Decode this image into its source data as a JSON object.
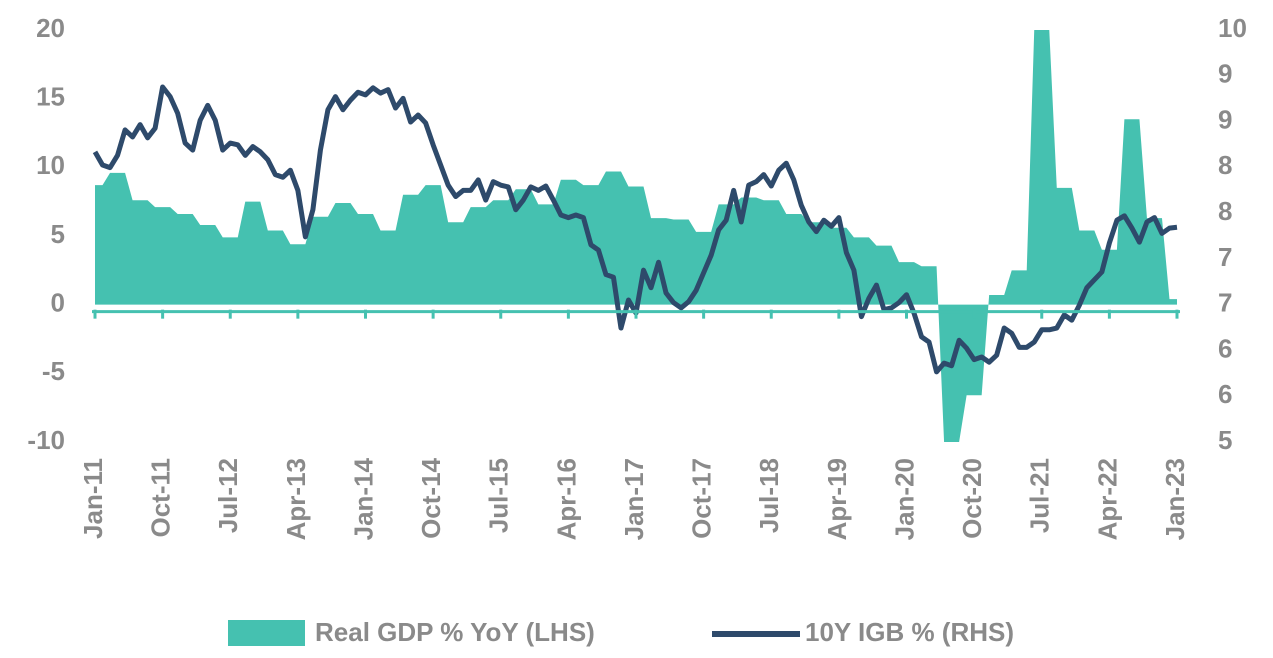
{
  "chart_data": {
    "type": "combo",
    "categories": [
      "Jan-11",
      null,
      null,
      null,
      null,
      null,
      null,
      null,
      null,
      "Oct-11",
      null,
      null,
      null,
      null,
      null,
      null,
      null,
      null,
      "Jul-12",
      null,
      null,
      null,
      null,
      null,
      null,
      null,
      null,
      "Apr-13",
      null,
      null,
      null,
      null,
      null,
      null,
      null,
      null,
      "Jan-14",
      null,
      null,
      null,
      null,
      null,
      null,
      null,
      null,
      "Oct-14",
      null,
      null,
      null,
      null,
      null,
      null,
      null,
      null,
      "Jul-15",
      null,
      null,
      null,
      null,
      null,
      null,
      null,
      null,
      "Apr-16",
      null,
      null,
      null,
      null,
      null,
      null,
      null,
      null,
      "Jan-17",
      null,
      null,
      null,
      null,
      null,
      null,
      null,
      null,
      "Oct-17",
      null,
      null,
      null,
      null,
      null,
      null,
      null,
      null,
      "Jul-18",
      null,
      null,
      null,
      null,
      null,
      null,
      null,
      null,
      "Apr-19",
      null,
      null,
      null,
      null,
      null,
      null,
      null,
      null,
      "Jan-20",
      null,
      null,
      null,
      null,
      null,
      null,
      null,
      null,
      "Oct-20",
      null,
      null,
      null,
      null,
      null,
      null,
      null,
      null,
      "Jul-21",
      null,
      null,
      null,
      null,
      null,
      null,
      null,
      null,
      "Apr-22",
      null,
      null,
      null,
      null,
      null,
      null,
      null,
      null,
      "Jan-23"
    ],
    "series": [
      {
        "name": "Real GDP % YoY (LHS)",
        "type": "area",
        "color": "#45c1b0",
        "values": [
          8.7,
          8.7,
          9.6,
          9.6,
          9.6,
          7.6,
          7.6,
          7.6,
          7.1,
          7.1,
          7.1,
          6.6,
          6.6,
          6.6,
          5.8,
          5.8,
          5.8,
          4.9,
          4.9,
          4.9,
          7.5,
          7.5,
          7.5,
          5.4,
          5.4,
          5.4,
          4.4,
          4.4,
          4.4,
          6.4,
          6.4,
          6.4,
          7.4,
          7.4,
          7.4,
          6.6,
          6.6,
          6.6,
          5.4,
          5.4,
          5.4,
          8.0,
          8.0,
          8.0,
          8.7,
          8.7,
          8.7,
          6.0,
          6.0,
          6.0,
          7.1,
          7.1,
          7.1,
          7.6,
          7.6,
          7.6,
          8.4,
          8.4,
          8.4,
          7.3,
          7.3,
          7.3,
          9.1,
          9.1,
          9.1,
          8.7,
          8.7,
          8.7,
          9.7,
          9.7,
          9.7,
          8.6,
          8.6,
          8.6,
          6.3,
          6.3,
          6.3,
          6.2,
          6.2,
          6.2,
          5.3,
          5.3,
          5.3,
          7.3,
          7.3,
          7.3,
          7.8,
          7.8,
          7.8,
          7.6,
          7.6,
          7.6,
          6.6,
          6.6,
          6.6,
          6.0,
          6.0,
          6.0,
          5.6,
          5.6,
          5.6,
          4.9,
          4.9,
          4.9,
          4.3,
          4.3,
          4.3,
          3.1,
          3.1,
          3.1,
          2.8,
          2.8,
          2.8,
          -10,
          -10,
          -10,
          -6.6,
          -6.6,
          -6.6,
          0.7,
          0.7,
          0.7,
          2.5,
          2.5,
          2.5,
          20,
          20,
          20,
          8.5,
          8.5,
          8.5,
          5.4,
          5.4,
          5.4,
          4.0,
          4.0,
          4.0,
          13.5,
          13.5,
          13.5,
          6.3,
          6.3,
          6.3,
          0.4,
          0.4
        ]
      },
      {
        "name": "10Y IGB % (RHS)",
        "type": "line",
        "axis": "y2",
        "color": "#2e4a6b",
        "values": [
          8.61,
          8.46,
          8.43,
          8.57,
          8.86,
          8.78,
          8.92,
          8.77,
          8.88,
          9.35,
          9.24,
          9.05,
          8.71,
          8.63,
          8.97,
          9.14,
          8.97,
          8.63,
          8.71,
          8.69,
          8.57,
          8.67,
          8.61,
          8.52,
          8.35,
          8.32,
          8.4,
          8.17,
          7.64,
          7.95,
          8.63,
          9.09,
          9.24,
          9.09,
          9.2,
          9.29,
          9.26,
          9.34,
          9.28,
          9.32,
          9.11,
          9.22,
          8.95,
          9.03,
          8.94,
          8.69,
          8.46,
          8.23,
          8.1,
          8.17,
          8.17,
          8.29,
          8.06,
          8.27,
          8.23,
          8.21,
          7.95,
          8.06,
          8.21,
          8.17,
          8.22,
          8.06,
          7.89,
          7.86,
          7.89,
          7.86,
          7.55,
          7.49,
          7.21,
          7.18,
          6.6,
          6.92,
          6.77,
          7.26,
          7.06,
          7.35,
          7.0,
          6.89,
          6.83,
          6.9,
          7.03,
          7.23,
          7.43,
          7.72,
          7.83,
          8.17,
          7.81,
          8.23,
          8.27,
          8.35,
          8.22,
          8.4,
          8.48,
          8.29,
          8.0,
          7.81,
          7.7,
          7.83,
          7.76,
          7.86,
          7.46,
          7.26,
          6.73,
          6.94,
          7.09,
          6.81,
          6.83,
          6.89,
          6.98,
          6.77,
          6.5,
          6.44,
          6.1,
          6.2,
          6.17,
          6.46,
          6.37,
          6.24,
          6.27,
          6.21,
          6.29,
          6.6,
          6.54,
          6.38,
          6.38,
          6.44,
          6.58,
          6.58,
          6.6,
          6.75,
          6.69,
          6.86,
          7.06,
          7.15,
          7.24,
          7.57,
          7.83,
          7.88,
          7.74,
          7.58,
          7.81,
          7.86,
          7.68,
          7.74,
          7.75
        ]
      }
    ],
    "ylim": [
      -10,
      20
    ],
    "yticks": [
      -10,
      -5,
      0,
      5,
      10,
      15,
      20
    ],
    "y2lim": [
      5.3,
      10
    ],
    "y2ticks": [
      {
        "value": 10,
        "label": "10"
      },
      {
        "value": 9.478,
        "label": "9"
      },
      {
        "value": 8.956,
        "label": "9"
      },
      {
        "value": 8.433,
        "label": "8"
      },
      {
        "value": 7.911,
        "label": "8"
      },
      {
        "value": 7.389,
        "label": "7"
      },
      {
        "value": 6.867,
        "label": "7"
      },
      {
        "value": 6.344,
        "label": "6"
      },
      {
        "value": 5.822,
        "label": "6"
      },
      {
        "value": 5.3,
        "label": "5"
      }
    ],
    "legend": "bottom",
    "grid": false
  }
}
